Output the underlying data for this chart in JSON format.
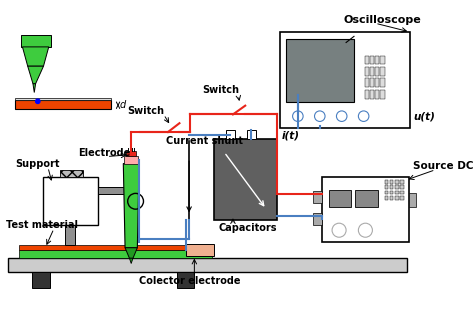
{
  "bg_color": "#ffffff",
  "labels": {
    "oscilloscope": "Oscilloscope",
    "switch1": "Switch",
    "switch2": "Switch",
    "it": "i(t)",
    "ut": "u(t)",
    "support": "Support",
    "electrode": "Electrode",
    "current_shunt": "Current shunt",
    "capacitors": "Capacitors",
    "source_dc": "Source DC",
    "test_material": "Test material",
    "colector": "Colector electrode",
    "d_label": "d"
  },
  "colors": {
    "red": "#e8251a",
    "blue": "#4a7fc1",
    "green": "#3ecc3e",
    "dark_green": "#229922",
    "gray": "#aaaaaa",
    "dark_gray": "#666666",
    "mid_gray": "#808080",
    "light_gray": "#cccccc",
    "orange_red": "#ee4400",
    "black": "#111111",
    "white": "#ffffff",
    "screen_gray": "#778080",
    "salmon": "#f0b090",
    "steel": "#909090",
    "hat_gray": "#bbbbbb",
    "cap_dark": "#606060"
  }
}
